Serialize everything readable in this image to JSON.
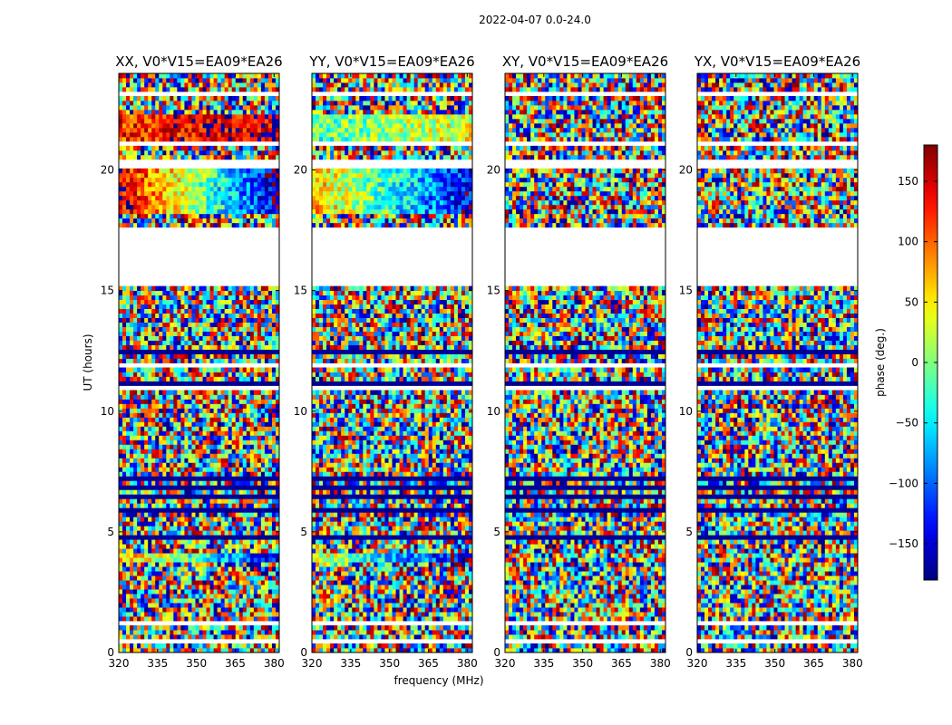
{
  "suptitle": "2022-04-07 0.0-24.0",
  "chart_data": {
    "type": "heatmap",
    "x_axis": {
      "label": "frequency (MHz)",
      "range": [
        320,
        382
      ],
      "ticks": [
        320,
        335,
        350,
        365,
        380
      ],
      "tick_labels": [
        "320",
        "335",
        "350",
        "365",
        "380"
      ]
    },
    "y_axis": {
      "label": "UT (hours)",
      "range": [
        0,
        24
      ],
      "ticks": [
        0,
        5,
        10,
        15,
        20
      ],
      "tick_labels": [
        "0",
        "5",
        "10",
        "15",
        "20"
      ]
    },
    "colorbar": {
      "label": "phase (deg.)",
      "colormap": "jet",
      "range": [
        -180,
        180
      ],
      "ticks": [
        -150,
        -100,
        -50,
        0,
        50,
        100,
        150
      ],
      "tick_labels": [
        "−150",
        "−100",
        "−50",
        "0",
        "50",
        "100",
        "150"
      ]
    },
    "panels": [
      {
        "title": "XX, V0*V15=EA09*EA26",
        "baseline": "V0*V15=EA09*EA26",
        "polarization": "XX",
        "coherent_phase_bands": [
          {
            "ut_range": [
              18.2,
              20.0
            ],
            "phase_low_freq": 150,
            "phase_high_freq": -150
          },
          {
            "ut_range": [
              21.2,
              22.3
            ],
            "phase_low_freq": 120,
            "phase_high_freq": 160
          },
          {
            "ut_range": [
              14.95,
              15.05
            ],
            "phase_low_freq": 170,
            "phase_high_freq": -170
          },
          {
            "ut_range": [
              3.8,
              4.2
            ],
            "phase_low_freq": 80,
            "phase_high_freq": -140
          }
        ]
      },
      {
        "title": "YY, V0*V15=EA09*EA26",
        "baseline": "V0*V15=EA09*EA26",
        "polarization": "YY",
        "coherent_phase_bands": [
          {
            "ut_range": [
              18.2,
              20.0
            ],
            "phase_low_freq": 70,
            "phase_high_freq": -140
          },
          {
            "ut_range": [
              21.2,
              22.3
            ],
            "phase_low_freq": -20,
            "phase_high_freq": 40
          },
          {
            "ut_range": [
              14.95,
              15.05
            ],
            "phase_low_freq": 60,
            "phase_high_freq": -170
          },
          {
            "ut_range": [
              3.8,
              4.2
            ],
            "phase_low_freq": 40,
            "phase_high_freq": -160
          }
        ]
      },
      {
        "title": "XY, V0*V15=EA09*EA26",
        "baseline": "V0*V15=EA09*EA26",
        "polarization": "XY",
        "coherent_phase_bands": []
      },
      {
        "title": "YX, V0*V15=EA09*EA26",
        "baseline": "V0*V15=EA09*EA26",
        "polarization": "YX",
        "coherent_phase_bands": []
      }
    ],
    "flagged_ut_ranges": [
      [
        23.0,
        23.25
      ],
      [
        21.0,
        21.2
      ],
      [
        20.1,
        20.4
      ],
      [
        15.1,
        17.6
      ],
      [
        11.8,
        12.0
      ],
      [
        10.8,
        11.0
      ],
      [
        3.55,
        3.65
      ],
      [
        2.6,
        2.7
      ],
      [
        1.2,
        1.3
      ],
      [
        0.4,
        0.5
      ]
    ],
    "dark_ut_ranges": [
      [
        7.6,
        7.75
      ],
      [
        7.2,
        7.3
      ],
      [
        6.8,
        6.9
      ],
      [
        6.45,
        6.6
      ],
      [
        6.1,
        6.2
      ],
      [
        5.8,
        5.95
      ],
      [
        5.55,
        5.65
      ],
      [
        4.75,
        4.85
      ],
      [
        4.45,
        4.55
      ],
      [
        3.9,
        3.95
      ],
      [
        12.4,
        12.5
      ],
      [
        11.1,
        11.2
      ]
    ]
  }
}
